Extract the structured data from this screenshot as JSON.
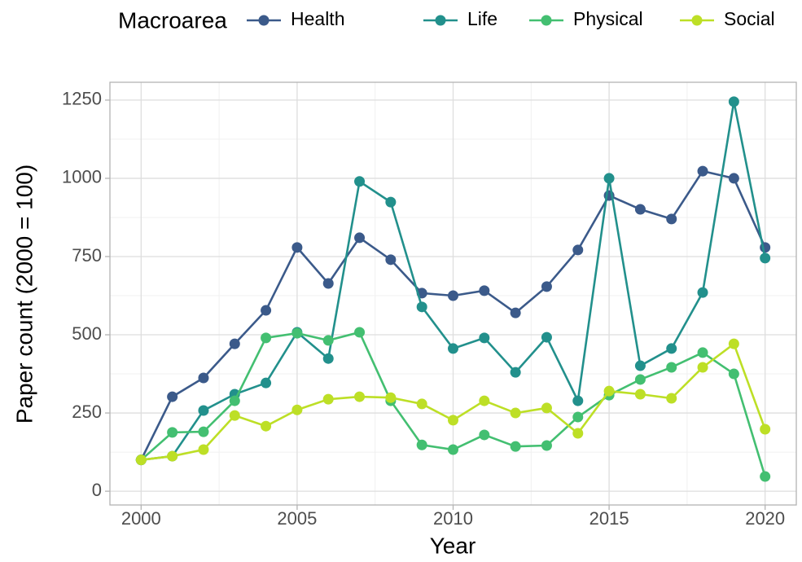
{
  "chart_data": {
    "type": "line",
    "x_label": "Year",
    "y_label": "Paper count (2000 = 100)",
    "legend_title": "Macroarea",
    "legend_position": "top",
    "x": [
      2000,
      2001,
      2002,
      2003,
      2004,
      2005,
      2006,
      2007,
      2008,
      2009,
      2010,
      2011,
      2012,
      2013,
      2014,
      2015,
      2016,
      2017,
      2018,
      2019,
      2020
    ],
    "series": [
      {
        "name": "Health",
        "color": "#3b5a8a",
        "values": [
          100,
          302,
          362,
          471,
          578,
          779,
          664,
          810,
          740,
          633,
          625,
          641,
          570,
          654,
          771,
          945,
          901,
          870,
          1023,
          1000,
          779
        ]
      },
      {
        "name": "Life",
        "color": "#22908c",
        "values": [
          100,
          112,
          258,
          310,
          346,
          508,
          424,
          990,
          924,
          589,
          456,
          490,
          380,
          492,
          289,
          1000,
          401,
          456,
          635,
          1245,
          745
        ]
      },
      {
        "name": "Physical",
        "color": "#43bf71",
        "values": [
          100,
          188,
          190,
          289,
          490,
          505,
          482,
          508,
          289,
          148,
          133,
          180,
          143,
          146,
          237,
          307,
          357,
          396,
          443,
          375,
          47
        ]
      },
      {
        "name": "Social",
        "color": "#bddf26",
        "values": [
          100,
          112,
          133,
          242,
          208,
          260,
          294,
          302,
          299,
          279,
          227,
          289,
          250,
          266,
          185,
          320,
          310,
          297,
          396,
          471,
          198
        ]
      }
    ],
    "xlim": [
      1999,
      2021
    ],
    "xticks": [
      2000,
      2005,
      2010,
      2015,
      2020
    ],
    "ylim": [
      -44,
      1307
    ],
    "yticks": [
      0,
      250,
      500,
      750,
      1000,
      1250
    ],
    "grid": true
  }
}
